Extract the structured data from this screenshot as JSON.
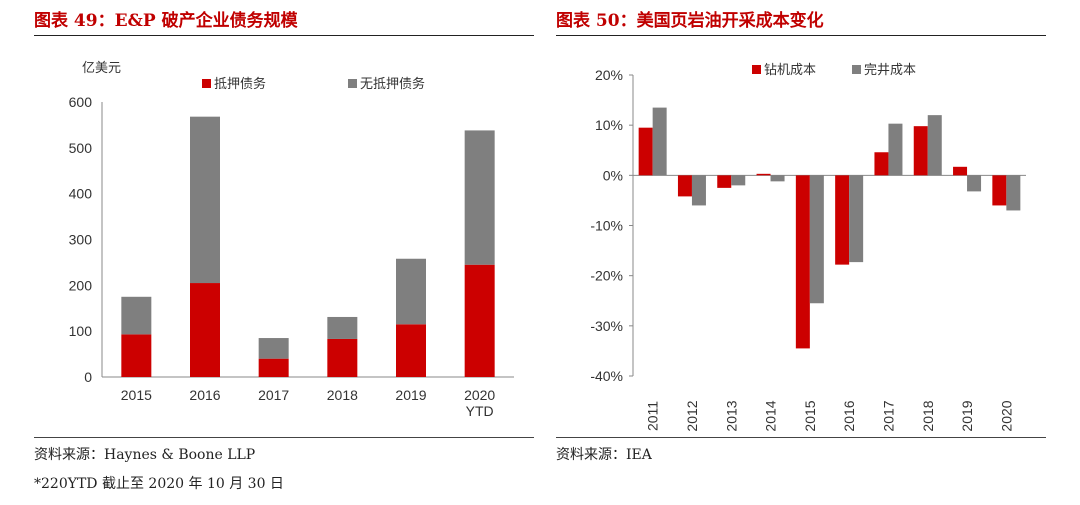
{
  "left": {
    "title": "图表 49：E&P 破产企业债务规模",
    "source": "资料来源：Haynes & Boone LLP",
    "footnote": "*220YTD 截止至 2020 年 10 月 30 日"
  },
  "right": {
    "title": "图表 50：美国页岩油开采成本变化",
    "source": "资料来源：IEA"
  },
  "chart_data": [
    {
      "type": "bar",
      "stacked": true,
      "categories": [
        "2015",
        "2016",
        "2017",
        "2018",
        "2019",
        "2020\nYTD"
      ],
      "series": [
        {
          "name": "抵押债务",
          "values": [
            93,
            205,
            40,
            83,
            115,
            245
          ],
          "color": "#cc0000"
        },
        {
          "name": "无抵押债务",
          "values": [
            82,
            363,
            45,
            48,
            143,
            293
          ],
          "color": "#7f7f7f"
        }
      ],
      "ylabel": "亿美元",
      "ylim": [
        0,
        600
      ],
      "yticks": [
        0,
        100,
        200,
        300,
        400,
        500,
        600
      ],
      "legend_position": "top"
    },
    {
      "type": "bar",
      "categories": [
        "2011",
        "2012",
        "2013",
        "2014",
        "2015",
        "2016",
        "2017",
        "2018",
        "2019",
        "2020"
      ],
      "series": [
        {
          "name": "钻机成本",
          "values": [
            9.5,
            -4.2,
            -2.5,
            0.3,
            -34.5,
            -17.8,
            4.6,
            9.8,
            1.7,
            -6.0
          ],
          "color": "#cc0000"
        },
        {
          "name": "完井成本",
          "values": [
            13.5,
            -6.0,
            -2.0,
            -1.2,
            -25.5,
            -17.3,
            10.3,
            12.0,
            -3.2,
            -7.0
          ],
          "color": "#7f7f7f"
        }
      ],
      "ylim": [
        -40,
        20
      ],
      "yticks": [
        "-40%",
        "-30%",
        "-20%",
        "-10%",
        "0%",
        "10%",
        "20%"
      ],
      "yticks_values": [
        -40,
        -30,
        -20,
        -10,
        0,
        10,
        20
      ],
      "legend_position": "top"
    }
  ]
}
